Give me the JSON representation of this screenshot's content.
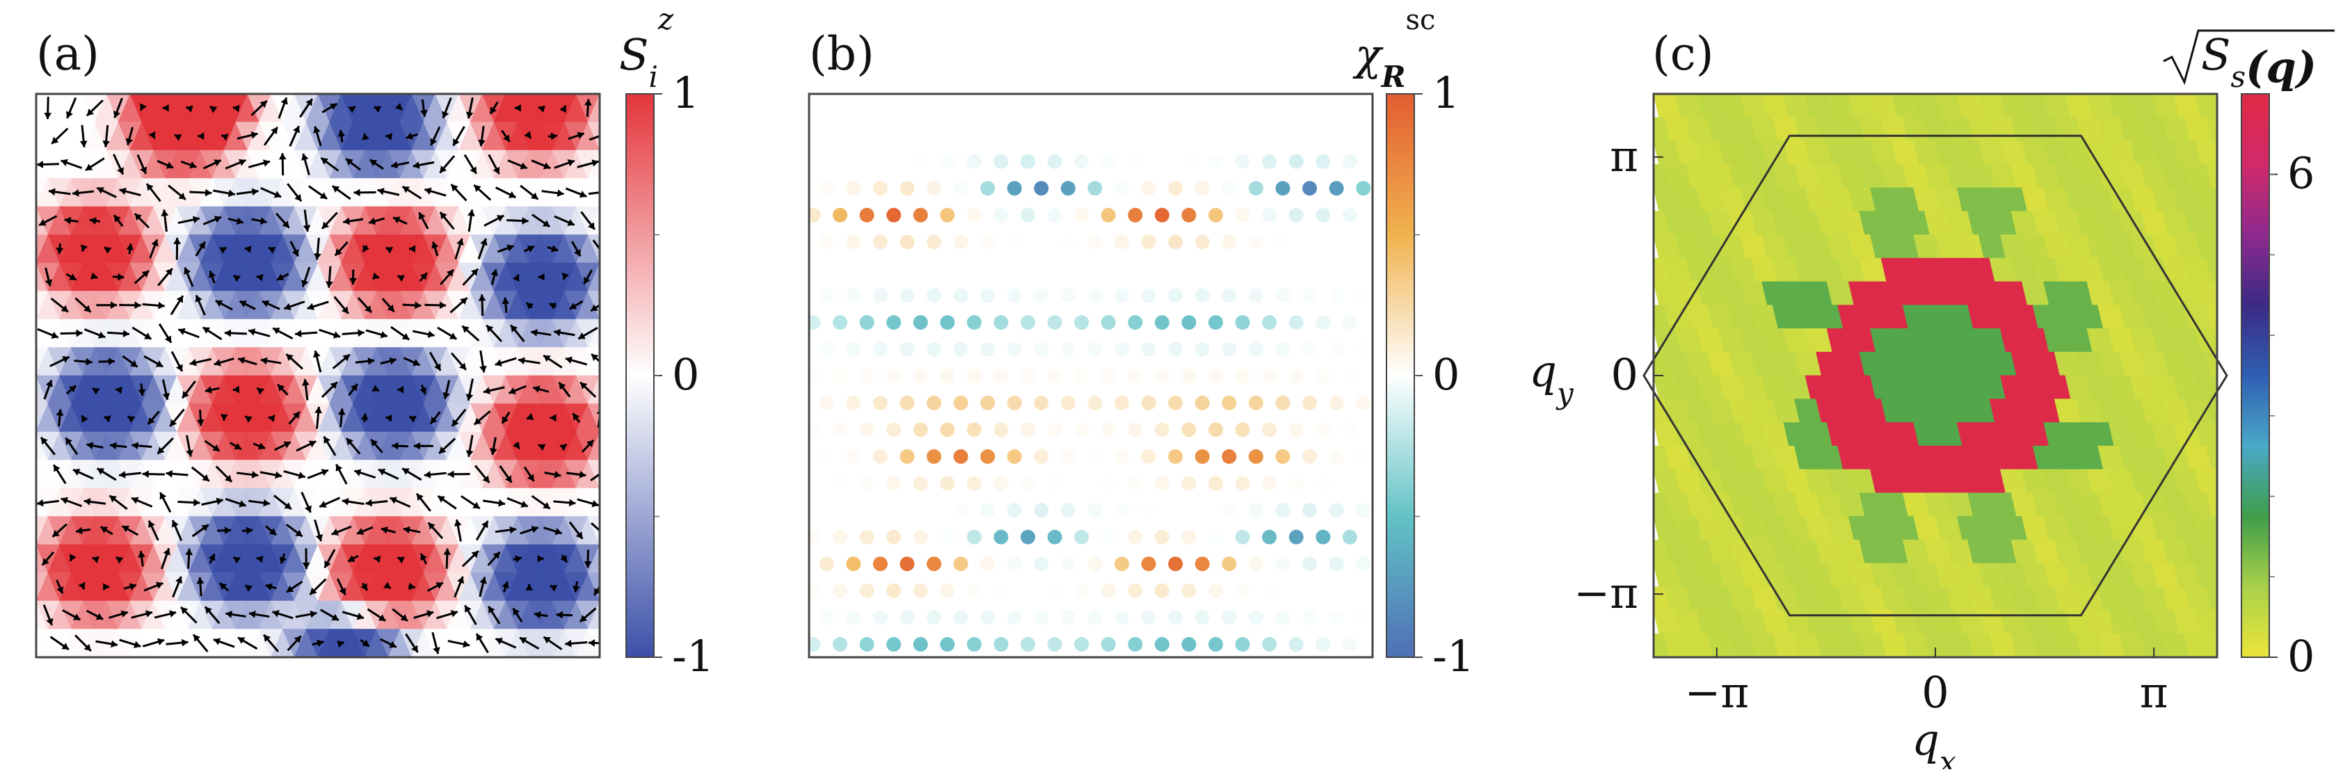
{
  "figure": {
    "panel_labels": [
      "(a)",
      "(b)",
      "(c)"
    ]
  },
  "chart_data": [
    {
      "type": "heatmap",
      "panel": "(a)",
      "colorbar": {
        "title": "S",
        "title_sub": "i",
        "title_sup": "z",
        "range": [
          -1,
          1
        ],
        "ticks": [
          "1",
          "0",
          "-1"
        ],
        "colors": [
          "#3b4fa8",
          "#ffffff",
          "#e3353b"
        ]
      },
      "grid": {
        "cols": 24,
        "rows": 20
      },
      "lattice": "triangular",
      "vector_overlay": true,
      "domains": [
        {
          "col": 6.2,
          "row": 1.0,
          "sign": 1
        },
        {
          "col": 14.5,
          "row": 1.0,
          "sign": -1
        },
        {
          "col": 21.3,
          "row": 0.6,
          "sign": 1
        },
        {
          "col": 2.5,
          "row": 5.6,
          "sign": 1
        },
        {
          "col": 9.0,
          "row": 5.9,
          "sign": -1
        },
        {
          "col": 15.2,
          "row": 5.9,
          "sign": 1
        },
        {
          "col": 21.5,
          "row": 6.6,
          "sign": -1
        },
        {
          "col": 3.0,
          "row": 11.0,
          "sign": -1
        },
        {
          "col": 9.0,
          "row": 11.3,
          "sign": 1
        },
        {
          "col": 15.2,
          "row": 11.0,
          "sign": -1
        },
        {
          "col": 21.6,
          "row": 12.0,
          "sign": 1
        },
        {
          "col": 2.6,
          "row": 16.8,
          "sign": 1
        },
        {
          "col": 9.0,
          "row": 16.6,
          "sign": -1
        },
        {
          "col": 15.0,
          "row": 16.9,
          "sign": 1
        },
        {
          "col": 21.5,
          "row": 17.2,
          "sign": -1
        },
        {
          "col": 13.2,
          "row": 20.3,
          "sign": -1
        },
        {
          "col": 7.0,
          "row": -0.6,
          "sign": 1
        }
      ]
    },
    {
      "type": "scatter",
      "panel": "(b)",
      "colorbar": {
        "title": "χ",
        "title_sub": "R",
        "title_sup": "sc",
        "range": [
          -1,
          1
        ],
        "ticks": [
          "1",
          "0",
          "-1"
        ],
        "colors": [
          "#4f6fb5",
          "#62c3c6",
          "#ffffff",
          "#f0b24e",
          "#e35d31"
        ]
      },
      "grid": {
        "cols": 21,
        "rows": 21
      },
      "lattice": "triangular",
      "features": [
        {
          "x": 3,
          "y": 4,
          "value": 0.95,
          "kind": "arc"
        },
        {
          "x": 13,
          "y": 4,
          "value": 0.95,
          "kind": "arc"
        },
        {
          "x": 8,
          "y": 3,
          "value": -0.85,
          "kind": "arc"
        },
        {
          "x": 18,
          "y": 3,
          "value": -0.85,
          "kind": "arc"
        },
        {
          "x": 4,
          "y": 8,
          "value": -0.55,
          "kind": "row"
        },
        {
          "x": 14,
          "y": 8,
          "value": -0.55,
          "kind": "row"
        },
        {
          "x": 5,
          "y": 11,
          "value": 0.4,
          "kind": "row"
        },
        {
          "x": 15,
          "y": 11,
          "value": 0.4,
          "kind": "row"
        },
        {
          "x": 5,
          "y": 13,
          "value": 0.8,
          "kind": "arc"
        },
        {
          "x": 15,
          "y": 13,
          "value": 0.8,
          "kind": "arc"
        },
        {
          "x": 8,
          "y": 16,
          "value": -0.7,
          "kind": "arc"
        },
        {
          "x": 18,
          "y": 16,
          "value": -0.7,
          "kind": "arc"
        },
        {
          "x": 3,
          "y": 17,
          "value": 0.9,
          "kind": "arc"
        },
        {
          "x": 13,
          "y": 17,
          "value": 0.9,
          "kind": "arc"
        },
        {
          "x": 4,
          "y": 20,
          "value": -0.55,
          "kind": "row"
        },
        {
          "x": 14,
          "y": 20,
          "value": -0.55,
          "kind": "row"
        }
      ]
    },
    {
      "type": "heatmap",
      "panel": "(c)",
      "colorbar": {
        "title": "√S",
        "title_sub": "s",
        "title_arg": "(q)",
        "range": [
          0,
          7
        ],
        "ticks": [
          {
            "value": 6,
            "label": "6"
          },
          {
            "value": 0,
            "label": "0"
          }
        ],
        "colors": [
          "#ece53a",
          "#a9d14a",
          "#3f9e4a",
          "#4aa8c9",
          "#2f5fb2",
          "#3b2a85",
          "#8e2a8e",
          "#d12a6a",
          "#e02a45"
        ]
      },
      "xlabel": "q",
      "xlabel_sub": "x",
      "ylabel": "q",
      "ylabel_sub": "y",
      "xlim": [
        -4.05,
        4.05
      ],
      "ylim": [
        -4.05,
        4.05
      ],
      "xticks": [
        {
          "value": -3.1416,
          "label": "−π"
        },
        {
          "value": 0,
          "label": "0"
        },
        {
          "value": 3.1416,
          "label": "π"
        }
      ],
      "yticks": [
        {
          "value": 3.1416,
          "label": "π"
        },
        {
          "value": 0,
          "label": "0"
        },
        {
          "value": -3.1416,
          "label": "−π"
        }
      ],
      "brillouin_zone": {
        "shape": "hexagon",
        "vertex_radius": 4.19
      },
      "features": [
        {
          "kind": "ring",
          "qx": 0,
          "qy": 0,
          "r_inner": 0.95,
          "r_outer": 1.75,
          "value": 6.9
        },
        {
          "kind": "disk",
          "qx": 0,
          "qy": 0,
          "r": 0.95,
          "value": 1.6
        },
        {
          "kind": "patch",
          "qx": -1.95,
          "qy": 1.0,
          "value": 1.5
        },
        {
          "kind": "patch",
          "qx": 1.95,
          "qy": -1.0,
          "value": 1.5
        },
        {
          "kind": "patch",
          "qx": -1.8,
          "qy": -0.9,
          "value": 1.4
        },
        {
          "kind": "patch",
          "qx": 1.8,
          "qy": 0.9,
          "value": 1.4
        },
        {
          "kind": "patch",
          "qx": -0.75,
          "qy": 2.2,
          "value": 1.2
        },
        {
          "kind": "patch",
          "qx": 0.75,
          "qy": -2.2,
          "value": 1.2
        },
        {
          "kind": "patch",
          "qx": 0.8,
          "qy": 2.3,
          "value": 1.2
        },
        {
          "kind": "patch",
          "qx": -0.8,
          "qy": -2.3,
          "value": 1.2
        }
      ]
    }
  ]
}
